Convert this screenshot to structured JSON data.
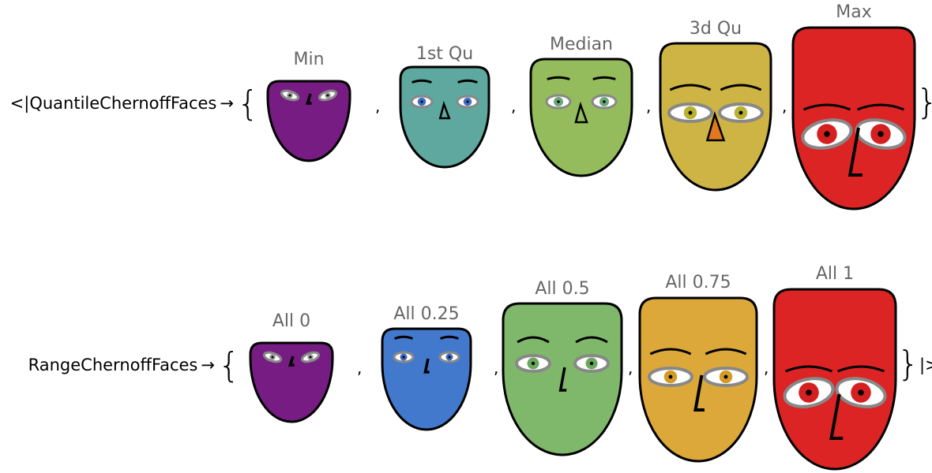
{
  "separator": ",",
  "rows": [
    {
      "prefix": "<|",
      "key": "QuantileChernoffFaces",
      "arrow": "→",
      "open": "{",
      "close": "}",
      "suffix": ",",
      "faces": [
        {
          "label": "Min",
          "color": "#761c82",
          "eye_color": "#9a9a9a"
        },
        {
          "label": "1st Qu",
          "color": "#5ea8a0",
          "eye_color": "#3f6fc0"
        },
        {
          "label": "Median",
          "color": "#94bc5c",
          "eye_color": "#6aa878"
        },
        {
          "label": "3d Qu",
          "color": "#cdb444",
          "eye_color": "#b8b030"
        },
        {
          "label": "Max",
          "color": "#dc2424",
          "eye_color": "#d42020"
        }
      ]
    },
    {
      "key": "RangeChernoffFaces",
      "arrow": "→",
      "open": "{",
      "close": "}",
      "suffix": "|>",
      "faces": [
        {
          "label": "All 0",
          "color": "#761c82",
          "eye_color": "#9a9a9a"
        },
        {
          "label": "All 0.25",
          "color": "#4279cd",
          "eye_color": "#3a68c0"
        },
        {
          "label": "All 0.5",
          "color": "#80b86b",
          "eye_color": "#6aa860"
        },
        {
          "label": "All 0.75",
          "color": "#dca83a",
          "eye_color": "#d49a28"
        },
        {
          "label": "All 1",
          "color": "#dc2424",
          "eye_color": "#d42020"
        }
      ]
    }
  ]
}
